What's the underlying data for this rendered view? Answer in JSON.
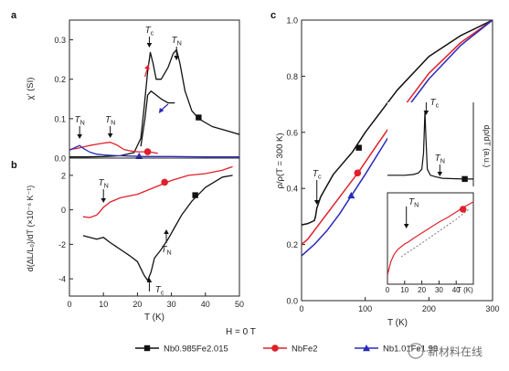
{
  "colors": {
    "black": "#111111",
    "red": "#e0202a",
    "blue": "#2a2ab8",
    "dotted": "#777777"
  },
  "legend": {
    "header": "H = 0 T",
    "items": [
      {
        "label": "Nb0.985Fe2.015",
        "color": "#111111",
        "marker": "square"
      },
      {
        "label": "NbFe2",
        "color": "#e0202a",
        "marker": "circle"
      },
      {
        "label": "Nb1.01Fe1.99",
        "color": "#2a2ab8",
        "marker": "triangle"
      }
    ]
  },
  "watermark": "新材料在线",
  "chart_data": [
    {
      "panel": "a",
      "type": "line",
      "ylabel": "χ' (SI)",
      "xlim": [
        0,
        50
      ],
      "ylim": [
        0,
        0.35
      ],
      "yticks": [
        "0.0",
        "0.1",
        "0.2",
        "0.3"
      ],
      "ytick_values": [
        0,
        0.1,
        0.2,
        0.3
      ],
      "annotations": [
        {
          "text": "Tc",
          "x": 23.5,
          "y": 0.34
        },
        {
          "text": "TN",
          "x": 31.5,
          "y": 0.33
        },
        {
          "text": "TN",
          "x": 3,
          "y": 0.1
        },
        {
          "text": "TN",
          "x": 12,
          "y": 0.1
        }
      ],
      "series": [
        {
          "color": "#111111",
          "marker": "square",
          "marker_at": [
            38,
            0.103
          ],
          "x": [
            0,
            5,
            10,
            15,
            19,
            21,
            22,
            23,
            23.8,
            24.6,
            25.5,
            27,
            29,
            30.5,
            31.5,
            32.5,
            34,
            36,
            38,
            42,
            46,
            50
          ],
          "y": [
            0.003,
            0.003,
            0.004,
            0.006,
            0.014,
            0.05,
            0.13,
            0.22,
            0.268,
            0.24,
            0.2,
            0.2,
            0.23,
            0.265,
            0.275,
            0.24,
            0.17,
            0.12,
            0.1,
            0.08,
            0.07,
            0.06
          ]
        },
        {
          "color": "#111111",
          "x": [
            21,
            22.2,
            23,
            24,
            25.5,
            27,
            29,
            31
          ],
          "y": [
            0.03,
            0.1,
            0.16,
            0.17,
            0.16,
            0.15,
            0.14,
            0.14
          ]
        },
        {
          "color": "#e0202a",
          "marker": "circle",
          "marker_at": [
            23,
            0.016
          ],
          "x": [
            0,
            2,
            4,
            6,
            8,
            10,
            12,
            14,
            16,
            18,
            20,
            22,
            24,
            26
          ],
          "y": [
            0.022,
            0.024,
            0.028,
            0.032,
            0.035,
            0.038,
            0.04,
            0.033,
            0.022,
            0.018,
            0.016,
            0.016,
            0.015,
            0.012
          ]
        },
        {
          "color": "#2a2ab8",
          "marker": "triangle",
          "marker_at": [
            20.5,
            0.005
          ],
          "x": [
            0,
            2,
            3,
            4,
            6,
            8,
            10,
            14,
            18,
            22,
            30,
            40,
            50
          ],
          "y": [
            0.02,
            0.028,
            0.032,
            0.025,
            0.015,
            0.01,
            0.008,
            0.006,
            0.005,
            0.004,
            0.004,
            0.003,
            0.003
          ]
        }
      ]
    },
    {
      "panel": "b",
      "type": "line",
      "xlabel": "T (K)",
      "ylabel": "d(ΔL/L₀)/dT (×10⁻⁶ K⁻¹)",
      "xlim": [
        0,
        50
      ],
      "ylim": [
        -5,
        3
      ],
      "xticks": [
        "0",
        "10",
        "20",
        "30",
        "40",
        "50"
      ],
      "xtick_values": [
        0,
        10,
        20,
        30,
        40,
        50
      ],
      "yticks": [
        "2",
        "0",
        "-2",
        "-4"
      ],
      "ytick_values": [
        2,
        0,
        -2,
        -4
      ],
      "annotations": [
        {
          "text": "TN",
          "x": 10,
          "y": 1.2
        },
        {
          "text": "TN",
          "x": 28.5,
          "y": -2.2
        },
        {
          "text": "Tc",
          "x": 23.5,
          "y": -4.6
        }
      ],
      "series": [
        {
          "color": "#e0202a",
          "marker": "circle",
          "marker_at": [
            28,
            1.6
          ],
          "x": [
            4,
            6,
            8,
            9,
            10,
            12,
            15,
            20,
            25,
            30,
            35,
            40,
            45,
            48
          ],
          "y": [
            -0.4,
            -0.45,
            -0.3,
            -0.1,
            0.15,
            0.45,
            0.7,
            0.9,
            1.3,
            1.7,
            2.0,
            2.1,
            2.3,
            2.5
          ]
        },
        {
          "color": "#111111",
          "marker": "square",
          "marker_at": [
            37,
            0.85
          ],
          "x": [
            4,
            6,
            8,
            10,
            12,
            15,
            18,
            20,
            21,
            22,
            23,
            24,
            25,
            27,
            29,
            31,
            33,
            36,
            40,
            45,
            48
          ],
          "y": [
            -1.5,
            -1.6,
            -1.7,
            -1.6,
            -1.9,
            -2.3,
            -2.7,
            -3.0,
            -3.4,
            -3.8,
            -4.1,
            -3.6,
            -2.8,
            -2.3,
            -1.7,
            -1.0,
            -0.3,
            0.5,
            1.3,
            1.9,
            2.0
          ]
        }
      ]
    },
    {
      "panel": "c",
      "type": "line",
      "xlabel": "T (K)",
      "ylabel": "ρ/ρ(T = 300 K)",
      "xlim": [
        0,
        300
      ],
      "ylim": [
        0,
        1.0
      ],
      "xticks": [
        "0",
        "100",
        "200",
        "300"
      ],
      "xtick_values": [
        0,
        100,
        200,
        300
      ],
      "yticks": [
        "0.0",
        "0.2",
        "0.4",
        "0.6",
        "0.8",
        "1.0"
      ],
      "ytick_values": [
        0,
        0.2,
        0.4,
        0.6,
        0.8,
        1.0
      ],
      "annotations": [
        {
          "text": "Tc",
          "x": 22,
          "y": 0.38
        }
      ],
      "series": [
        {
          "color": "#111111",
          "marker": "square",
          "marker_at": [
            90,
            0.545
          ],
          "x": [
            0,
            10,
            20,
            22,
            24,
            30,
            50,
            80,
            100,
            150,
            200,
            250,
            300
          ],
          "y": [
            0.27,
            0.275,
            0.285,
            0.3,
            0.33,
            0.37,
            0.45,
            0.53,
            0.6,
            0.75,
            0.87,
            0.945,
            1.0
          ]
        },
        {
          "color": "#e0202a",
          "marker": "circle",
          "marker_at": [
            88,
            0.455
          ],
          "x": [
            0,
            10,
            20,
            40,
            60,
            90,
            120,
            160,
            200,
            250,
            300
          ],
          "y": [
            0.2,
            0.22,
            0.25,
            0.31,
            0.37,
            0.46,
            0.56,
            0.69,
            0.81,
            0.92,
            1.0
          ]
        },
        {
          "color": "#2a2ab8",
          "marker": "triangle",
          "marker_at": [
            78,
            0.375
          ],
          "x": [
            0,
            20,
            40,
            60,
            80,
            100,
            130,
            160,
            200,
            250,
            300
          ],
          "y": [
            0.16,
            0.2,
            0.25,
            0.31,
            0.38,
            0.45,
            0.56,
            0.67,
            0.79,
            0.91,
            1.0
          ]
        }
      ]
    },
    {
      "panel": "c-inset-top",
      "type": "line",
      "ylabel": "dρ/dT (a.u.)",
      "xlim": [
        0,
        50
      ],
      "annotations": [
        {
          "text": "Tc",
          "x": 22
        },
        {
          "text": "TN",
          "x": 30
        }
      ],
      "series": [
        {
          "color": "#111111",
          "marker": "square",
          "marker_at": [
            45,
            0.05
          ],
          "x": [
            0,
            5,
            10,
            15,
            18,
            20,
            21,
            21.8,
            22.4,
            23.2,
            25,
            28,
            32,
            38,
            45,
            50
          ],
          "y": [
            0.1,
            0.1,
            0.1,
            0.11,
            0.13,
            0.18,
            0.4,
            0.95,
            0.6,
            0.18,
            0.1,
            0.08,
            0.06,
            0.055,
            0.05,
            0.05
          ]
        }
      ]
    },
    {
      "panel": "c-inset-bottom",
      "type": "line",
      "xlabel": "T (K)",
      "xlim": [
        0,
        50
      ],
      "xticks": [
        "0",
        "10",
        "20",
        "30",
        "40"
      ],
      "xtick_values": [
        0,
        10,
        20,
        30,
        40
      ],
      "annotations": [
        {
          "text": "TN",
          "x": 11
        }
      ],
      "series": [
        {
          "color": "#e0202a",
          "marker": "circle",
          "marker_at": [
            44,
            0.82
          ],
          "x": [
            0,
            2,
            4,
            6,
            8,
            10,
            12,
            15,
            20,
            25,
            30,
            35,
            40,
            45,
            50
          ],
          "y": [
            0.1,
            0.25,
            0.33,
            0.38,
            0.41,
            0.44,
            0.46,
            0.5,
            0.56,
            0.62,
            0.68,
            0.73,
            0.79,
            0.85,
            0.9
          ]
        },
        {
          "color": "#777777",
          "style": "dotted",
          "x": [
            8,
            20,
            30,
            40,
            48
          ],
          "y": [
            0.3,
            0.45,
            0.58,
            0.71,
            0.83
          ]
        }
      ]
    }
  ]
}
